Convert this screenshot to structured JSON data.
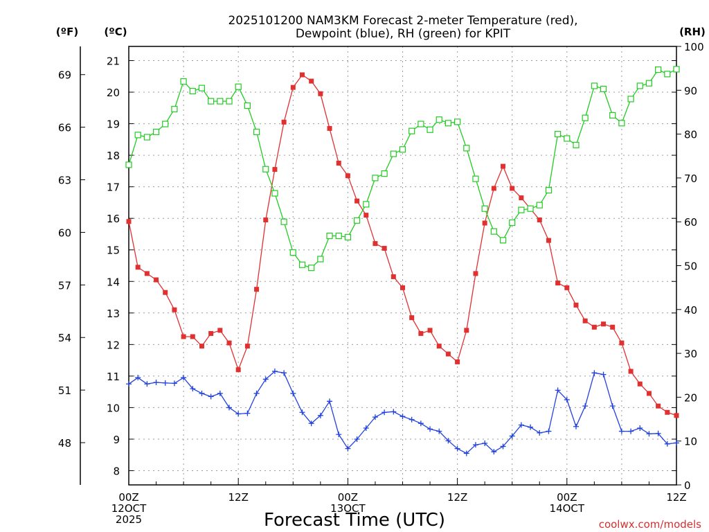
{
  "chart_data": {
    "type": "line",
    "title_line1": "2025101200 NAM3KM Forecast 2-meter Temperature (red),",
    "title_line2": "Dewpoint (blue), RH (green) for KPIT",
    "xlabel": "Forecast Time (UTC)",
    "credit": "coolwx.com/models",
    "left_unit_f": "(ºF)",
    "left_unit_c": "(ºC)",
    "right_unit": "(RH)",
    "x_range_hours": [
      0,
      60
    ],
    "y_celsius_range": [
      7.55,
      21.45
    ],
    "y_fahrenheit_ticks": [
      48,
      51,
      54,
      57,
      60,
      63,
      66,
      69
    ],
    "y_celsius_ticks": [
      8,
      9,
      10,
      11,
      12,
      13,
      14,
      15,
      16,
      17,
      18,
      19,
      20,
      21
    ],
    "rh_range": [
      0,
      100
    ],
    "rh_ticks": [
      0,
      10,
      20,
      30,
      40,
      50,
      60,
      70,
      80,
      90,
      100
    ],
    "x_ticks": [
      {
        "hour": 0,
        "lines": [
          "00Z",
          "12OCT",
          "2025"
        ]
      },
      {
        "hour": 12,
        "lines": [
          "12Z"
        ]
      },
      {
        "hour": 24,
        "lines": [
          "00Z",
          "13OCT"
        ]
      },
      {
        "hour": 36,
        "lines": [
          "12Z"
        ]
      },
      {
        "hour": 48,
        "lines": [
          "00Z",
          "14OCT"
        ]
      },
      {
        "hour": 60,
        "lines": [
          "12Z"
        ]
      }
    ],
    "series": [
      {
        "name": "Temperature",
        "unit": "C",
        "color": "#e03030",
        "marker": "filled-square",
        "hours": [
          0,
          1,
          2,
          3,
          4,
          5,
          6,
          7,
          8,
          9,
          10,
          11,
          12,
          13,
          14,
          15,
          16,
          17,
          18,
          19,
          20,
          21,
          22,
          23,
          24,
          25,
          26,
          27,
          28,
          29,
          30,
          31,
          32,
          33,
          34,
          35,
          36,
          37,
          38,
          39,
          40,
          41,
          42,
          43,
          44,
          45,
          46,
          47,
          48,
          49,
          50,
          51,
          52,
          53,
          54,
          55,
          56,
          57,
          58,
          59,
          60
        ],
        "values": [
          15.9,
          14.45,
          14.25,
          14.05,
          13.65,
          13.1,
          12.25,
          12.25,
          11.95,
          12.35,
          12.45,
          12.05,
          11.2,
          11.95,
          13.75,
          15.95,
          17.55,
          19.05,
          20.15,
          20.55,
          20.35,
          19.95,
          18.85,
          17.75,
          17.35,
          16.55,
          16.1,
          15.2,
          15.05,
          14.15,
          13.8,
          12.85,
          12.35,
          12.45,
          11.95,
          11.7,
          11.45,
          12.45,
          14.25,
          15.85,
          16.95,
          17.65,
          16.95,
          16.65,
          16.3,
          15.95,
          15.3,
          13.95,
          13.8,
          13.25,
          12.75,
          12.55,
          12.65,
          12.55,
          12.05,
          11.15,
          10.75,
          10.45,
          10.05,
          9.85,
          9.75
        ]
      },
      {
        "name": "Dewpoint",
        "unit": "C",
        "color": "#2040e0",
        "marker": "plus",
        "hours": [
          0,
          1,
          2,
          3,
          4,
          5,
          6,
          7,
          8,
          9,
          10,
          11,
          12,
          13,
          14,
          15,
          16,
          17,
          18,
          19,
          20,
          21,
          22,
          23,
          24,
          25,
          26,
          27,
          28,
          29,
          30,
          31,
          32,
          33,
          34,
          35,
          36,
          37,
          38,
          39,
          40,
          41,
          42,
          43,
          44,
          45,
          46,
          47,
          48,
          49,
          50,
          51,
          52,
          53,
          54,
          55,
          56,
          57,
          58,
          59,
          60
        ],
        "values": [
          10.75,
          10.95,
          10.75,
          10.8,
          10.78,
          10.77,
          10.95,
          10.6,
          10.45,
          10.35,
          10.45,
          10.0,
          9.8,
          9.82,
          10.45,
          10.9,
          11.15,
          11.1,
          10.45,
          9.85,
          9.5,
          9.75,
          10.2,
          9.15,
          8.7,
          9.0,
          9.35,
          9.7,
          9.85,
          9.87,
          9.72,
          9.62,
          9.5,
          9.32,
          9.25,
          8.95,
          8.7,
          8.55,
          8.82,
          8.87,
          8.6,
          8.77,
          9.1,
          9.45,
          9.38,
          9.2,
          9.25,
          10.55,
          10.25,
          9.4,
          10.05,
          11.1,
          11.05,
          10.05,
          9.25,
          9.25,
          9.35,
          9.17,
          9.18,
          8.85,
          8.88
        ]
      },
      {
        "name": "RH",
        "unit": "%",
        "color": "#20cc20",
        "marker": "open-square",
        "hours": [
          0,
          1,
          2,
          3,
          4,
          5,
          6,
          7,
          8,
          9,
          10,
          11,
          12,
          13,
          14,
          15,
          16,
          17,
          18,
          19,
          20,
          21,
          22,
          23,
          24,
          25,
          26,
          27,
          28,
          29,
          30,
          31,
          32,
          33,
          34,
          35,
          36,
          37,
          38,
          39,
          40,
          41,
          42,
          43,
          44,
          45,
          46,
          47,
          48,
          49,
          50,
          51,
          52,
          53,
          54,
          55,
          56,
          57,
          58,
          59,
          60
        ],
        "values": [
          73,
          79.8,
          79.3,
          80.5,
          82.3,
          85.7,
          92,
          89.8,
          90.5,
          87.5,
          87.5,
          87.5,
          90.8,
          86.5,
          80.5,
          72,
          66.5,
          60,
          53,
          50.2,
          49.5,
          51.5,
          56.8,
          56.8,
          56.5,
          60.3,
          64,
          70,
          71,
          75.5,
          76.5,
          80.7,
          82.3,
          81,
          83.3,
          82.5,
          82.8,
          76.8,
          69.8,
          63,
          57.8,
          55.8,
          59.8,
          62.7,
          63,
          63.8,
          67.2,
          80,
          79,
          77.5,
          83.7,
          91,
          90.3,
          84.3,
          82.5,
          88,
          91,
          91.6,
          94.7,
          93.7,
          94.8
        ]
      }
    ]
  }
}
